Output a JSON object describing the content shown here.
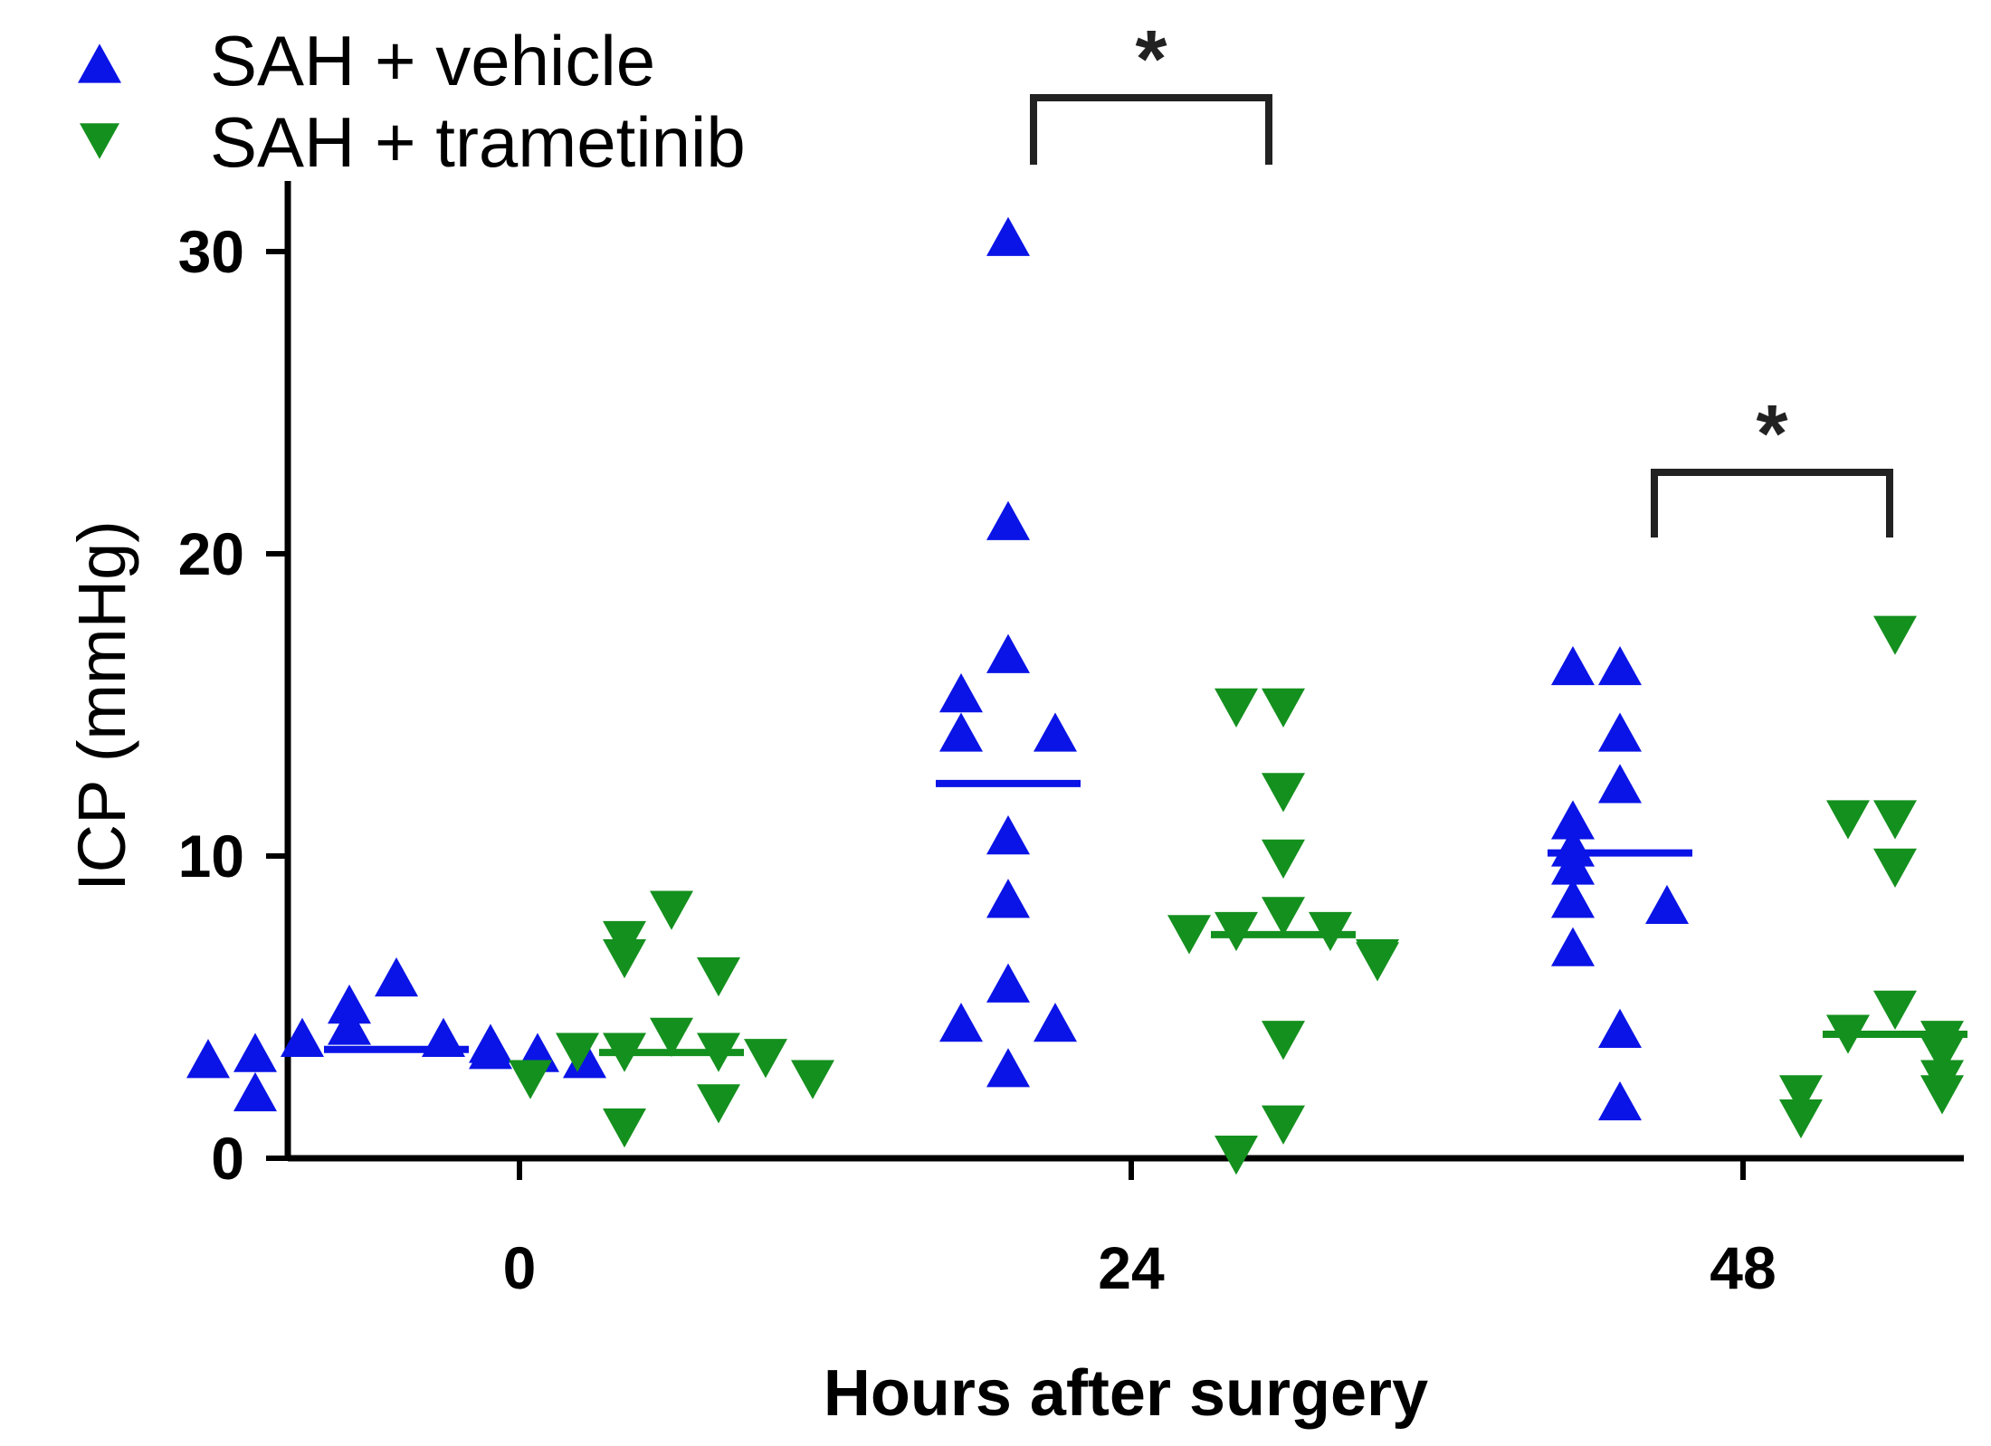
{
  "chart_data": {
    "type": "scatter",
    "title": "",
    "xlabel": "Hours after surgery",
    "ylabel": "ICP (mmHg)",
    "ylim": [
      0,
      32
    ],
    "yticks": [
      0,
      10,
      20,
      30
    ],
    "categories": [
      "0",
      "24",
      "48"
    ],
    "legend_position": "top-left",
    "series": [
      {
        "name": "SAH + vehicle",
        "color": "#0a14e6",
        "marker": "triangle-up",
        "medians": [
          3.6,
          12.4,
          10.1
        ],
        "values": [
          [
            6.0,
            5.1,
            4.4,
            4.0,
            4.0,
            3.8,
            3.6,
            3.5,
            3.5,
            3.3,
            3.3,
            2.2
          ],
          [
            30.5,
            21.1,
            16.7,
            15.4,
            14.1,
            14.1,
            10.7,
            8.6,
            5.8,
            4.5,
            4.5,
            3.0
          ],
          [
            16.3,
            16.3,
            14.1,
            12.4,
            11.2,
            10.3,
            9.7,
            8.6,
            8.4,
            7.0,
            4.3,
            1.9
          ]
        ]
      },
      {
        "name": "SAH + trametinib",
        "color": "#14901e",
        "marker": "triangle-down",
        "medians": [
          3.5,
          7.4,
          4.1
        ],
        "values": [
          [
            8.2,
            7.2,
            6.6,
            6.0,
            4.0,
            3.5,
            3.5,
            3.5,
            3.3,
            2.6,
            2.6,
            1.8,
            1.0
          ],
          [
            14.9,
            14.9,
            12.1,
            9.9,
            8.0,
            7.5,
            7.5,
            7.4,
            6.6,
            6.5,
            3.9,
            1.1,
            0.1
          ],
          [
            17.3,
            11.2,
            11.2,
            9.6,
            4.9,
            4.1,
            3.9,
            3.4,
            2.6,
            2.1,
            2.1,
            1.3
          ]
        ]
      }
    ],
    "annotations": [
      {
        "text": "*",
        "between": [
          "SAH + vehicle",
          "SAH + trametinib"
        ],
        "category": "24"
      },
      {
        "text": "*",
        "between": [
          "SAH + vehicle",
          "SAH + trametinib"
        ],
        "category": "48"
      }
    ]
  }
}
